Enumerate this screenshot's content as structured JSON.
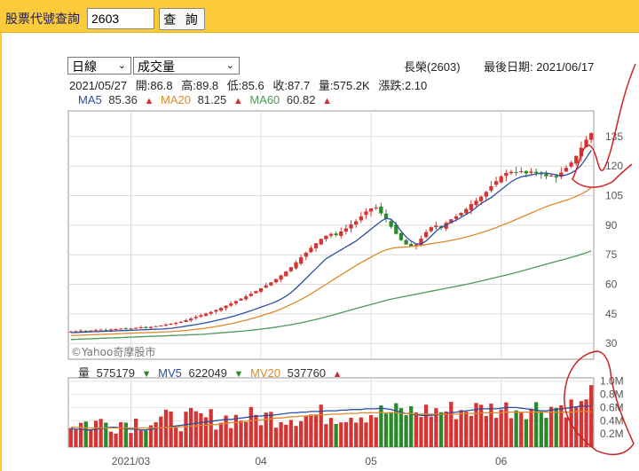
{
  "search": {
    "label": "股票代號查詢",
    "value": "2603",
    "button": "查 詢"
  },
  "controls": {
    "period": "日線",
    "indicator": "成交量"
  },
  "header": {
    "stock": "長榮(2603)",
    "last_date_label": "最後日期:",
    "last_date": "2021/06/17"
  },
  "quote": {
    "date": "2021/05/27",
    "open": "開:86.8",
    "high": "高:89.8",
    "low": "低:85.6",
    "close": "收:87.7",
    "volume": "量:575.2K",
    "change": "漲跌:2.10"
  },
  "ma": {
    "ma5_label": "MA5",
    "ma5": "85.36",
    "ma20_label": "MA20",
    "ma20": "81.25",
    "ma60_label": "MA60",
    "ma60": "60.82"
  },
  "volume_info": {
    "vol_label": "量",
    "vol": "575179",
    "mv5_label": "MV5",
    "mv5": "622049",
    "mv20_label": "MV20",
    "mv20": "537760"
  },
  "watermark": "©Yahoo奇摩股市",
  "colors": {
    "up": "#d63333",
    "down": "#2a8a2a",
    "ma5": "#2b4fa3",
    "ma20": "#e08a2a",
    "ma60": "#4d9a55",
    "annotation": "#cc2222",
    "topbar": "#fccb3a"
  },
  "chart_data": [
    {
      "type": "candlestick",
      "x_tick_labels": [
        "2021/03",
        "04",
        "05",
        "06"
      ],
      "y_tick_labels": [
        "30",
        "45",
        "60",
        "75",
        "90",
        "105",
        "120",
        "135"
      ],
      "ylim": [
        22,
        148
      ],
      "grid": true,
      "n_days": 105,
      "tick_day_index": [
        12,
        38,
        60,
        86
      ],
      "series": [
        {
          "name": "MA5",
          "values": [
            35.5,
            35.6,
            35.7,
            35.8,
            35.9,
            36,
            36.1,
            36.2,
            36.3,
            36.4,
            36.5,
            36.6,
            36.7,
            36.8,
            36.9,
            37,
            37.1,
            37.2,
            37.3,
            37.5,
            37.7,
            38,
            38.4,
            38.8,
            39.2,
            39.6,
            40,
            40.5,
            41,
            41.6,
            42.2,
            42.8,
            43.5,
            44.2,
            45,
            45.8,
            46.6,
            47.5,
            48.4,
            49.3,
            50.2,
            51.2,
            52.5,
            54,
            55.8,
            58,
            60.5,
            63,
            65.5,
            68,
            70.5,
            73,
            74.5,
            76,
            77.5,
            79,
            80.5,
            82,
            84,
            86,
            88,
            90,
            92,
            93.5,
            93,
            90.5,
            87,
            84,
            82,
            80.5,
            80.5,
            82,
            84.5,
            87,
            89,
            90,
            91.5,
            92.5,
            94,
            95.5,
            97,
            99,
            101,
            102.5,
            104,
            106,
            108,
            110,
            112,
            113.5,
            114.5,
            115,
            115.5,
            116,
            116.5,
            116.5,
            116,
            115.5,
            115,
            115.5,
            116.5,
            118,
            120.5,
            124,
            128
          ]
        },
        {
          "name": "MA20",
          "values": [
            34,
            34.1,
            34.2,
            34.3,
            34.4,
            34.5,
            34.6,
            34.7,
            34.8,
            34.9,
            35,
            35.1,
            35.2,
            35.3,
            35.4,
            35.5,
            35.6,
            35.7,
            35.8,
            35.9,
            36,
            36.2,
            36.4,
            36.6,
            36.9,
            37.2,
            37.5,
            37.8,
            38.2,
            38.6,
            39,
            39.5,
            40,
            40.6,
            41.2,
            41.8,
            42.5,
            43.2,
            44,
            44.8,
            45.6,
            46.5,
            47.5,
            48.6,
            49.8,
            51,
            52.3,
            53.7,
            55.2,
            56.8,
            58.4,
            60,
            61.6,
            63.2,
            64.8,
            66.4,
            68,
            69.5,
            71,
            72.4,
            73.8,
            75.2,
            76.5,
            77.5,
            78.2,
            78.6,
            78.8,
            79,
            79.2,
            79.5,
            79.8,
            80.2,
            80.6,
            81,
            81.4,
            81.8,
            82.3,
            82.8,
            83.4,
            84,
            84.7,
            85.4,
            86.2,
            87,
            87.9,
            88.8,
            89.8,
            90.8,
            91.8,
            92.9,
            94,
            95.1,
            96.2,
            97.3,
            98.4,
            99.4,
            100.3,
            101.1,
            101.9,
            102.7,
            103.6,
            104.6,
            105.8,
            107.2,
            109
          ]
        },
        {
          "name": "MA60",
          "values": [
            32,
            32.1,
            32.2,
            32.3,
            32.4,
            32.5,
            32.6,
            32.7,
            32.8,
            32.9,
            33,
            33.1,
            33.2,
            33.3,
            33.4,
            33.5,
            33.6,
            33.7,
            33.8,
            33.9,
            34,
            34.1,
            34.2,
            34.3,
            34.4,
            34.5,
            34.6,
            34.8,
            35,
            35.2,
            35.4,
            35.6,
            35.8,
            36,
            36.2,
            36.4,
            36.7,
            37,
            37.3,
            37.6,
            37.9,
            38.3,
            38.7,
            39.1,
            39.5,
            40,
            40.5,
            41,
            41.6,
            42.2,
            42.8,
            43.5,
            44.2,
            44.9,
            45.6,
            46.3,
            47,
            47.7,
            48.4,
            49.1,
            49.8,
            50.5,
            51.2,
            51.9,
            52.5,
            53,
            53.5,
            54,
            54.5,
            55,
            55.5,
            56,
            56.5,
            57,
            57.5,
            58,
            58.5,
            59,
            59.5,
            60,
            60.5,
            61.1,
            61.7,
            62.3,
            62.9,
            63.5,
            64.1,
            64.7,
            65.3,
            66,
            66.7,
            67.4,
            68.1,
            68.8,
            69.5,
            70.2,
            70.9,
            71.6,
            72.3,
            73,
            73.7,
            74.4,
            75.2,
            76,
            77
          ]
        }
      ],
      "close": [
        36,
        36.2,
        36.5,
        36.3,
        36.6,
        36.8,
        37,
        36.7,
        37.1,
        37.3,
        37.5,
        37.2,
        37.6,
        37.9,
        38.2,
        37.8,
        38.4,
        38.8,
        39.1,
        39.6,
        40,
        40.5,
        41,
        41.8,
        42.6,
        43.5,
        44.3,
        45.2,
        46,
        47,
        48,
        49.2,
        50.3,
        51.5,
        52.7,
        53.9,
        55.2,
        56.6,
        58,
        59.5,
        61,
        62.7,
        64.5,
        66.5,
        68.7,
        71.2,
        73.7,
        76,
        78.5,
        80.8,
        83.1,
        84.7,
        85.6,
        85,
        86.8,
        88.4,
        90.4,
        92,
        94.5,
        97,
        98.5,
        99,
        96,
        93.1,
        89.2,
        85.6,
        82.4,
        80.2,
        79.2,
        80.3,
        83.2,
        86.5,
        89,
        89.8,
        88.6,
        91.2,
        93,
        94.5,
        96.3,
        98.2,
        100.7,
        102.4,
        104.5,
        106.9,
        109.8,
        112.3,
        114.8,
        116.5,
        117.1,
        116.9,
        117.4,
        116.3,
        117.2,
        116.4,
        116,
        114.8,
        115.2,
        114.2,
        116.7,
        119.1,
        121.8,
        125.2,
        129.3,
        133.4,
        136.7
      ],
      "volume_axis": {
        "labels": [
          "1.0M",
          "0.8M",
          "0.6M",
          "0.4M",
          "0.2M"
        ],
        "max": 1.05
      },
      "volume_series": [
        {
          "name": "MV5",
          "values": [
            0.28,
            0.27,
            0.27,
            0.26,
            0.26,
            0.27,
            0.28,
            0.29,
            0.3,
            0.3,
            0.29,
            0.28,
            0.27,
            0.27,
            0.26,
            0.26,
            0.27,
            0.28,
            0.29,
            0.3,
            0.31,
            0.32,
            0.33,
            0.34,
            0.35,
            0.36,
            0.37,
            0.38,
            0.39,
            0.4,
            0.41,
            0.42,
            0.42,
            0.43,
            0.44,
            0.45,
            0.46,
            0.47,
            0.47,
            0.48,
            0.48,
            0.49,
            0.5,
            0.51,
            0.52,
            0.52,
            0.53,
            0.53,
            0.54,
            0.54,
            0.54,
            0.55,
            0.55,
            0.55,
            0.56,
            0.56,
            0.57,
            0.57,
            0.57,
            0.58,
            0.58,
            0.58,
            0.59,
            0.58,
            0.57,
            0.55,
            0.53,
            0.51,
            0.5,
            0.49,
            0.48,
            0.48,
            0.48,
            0.49,
            0.5,
            0.51,
            0.52,
            0.53,
            0.54,
            0.55,
            0.56,
            0.57,
            0.58,
            0.58,
            0.58,
            0.58,
            0.59,
            0.6,
            0.6,
            0.6,
            0.59,
            0.58,
            0.57,
            0.56,
            0.55,
            0.55,
            0.56,
            0.57,
            0.58,
            0.59,
            0.6,
            0.61,
            0.62,
            0.62,
            0.62
          ]
        },
        {
          "name": "MV20",
          "values": [
            0.3,
            0.3,
            0.3,
            0.29,
            0.29,
            0.29,
            0.29,
            0.29,
            0.29,
            0.29,
            0.29,
            0.29,
            0.29,
            0.29,
            0.29,
            0.29,
            0.29,
            0.29,
            0.29,
            0.3,
            0.3,
            0.3,
            0.31,
            0.31,
            0.32,
            0.32,
            0.33,
            0.33,
            0.34,
            0.34,
            0.35,
            0.36,
            0.37,
            0.37,
            0.38,
            0.39,
            0.4,
            0.41,
            0.41,
            0.42,
            0.43,
            0.44,
            0.44,
            0.45,
            0.46,
            0.46,
            0.47,
            0.47,
            0.48,
            0.48,
            0.49,
            0.49,
            0.5,
            0.5,
            0.5,
            0.51,
            0.51,
            0.51,
            0.52,
            0.52,
            0.52,
            0.52,
            0.52,
            0.52,
            0.52,
            0.52,
            0.51,
            0.51,
            0.51,
            0.5,
            0.5,
            0.5,
            0.5,
            0.5,
            0.5,
            0.5,
            0.5,
            0.5,
            0.51,
            0.51,
            0.51,
            0.51,
            0.52,
            0.52,
            0.52,
            0.52,
            0.52,
            0.53,
            0.53,
            0.53,
            0.53,
            0.53,
            0.53,
            0.53,
            0.53,
            0.53,
            0.53,
            0.53,
            0.53,
            0.53,
            0.53,
            0.54,
            0.54,
            0.54,
            0.54
          ]
        }
      ]
    }
  ]
}
